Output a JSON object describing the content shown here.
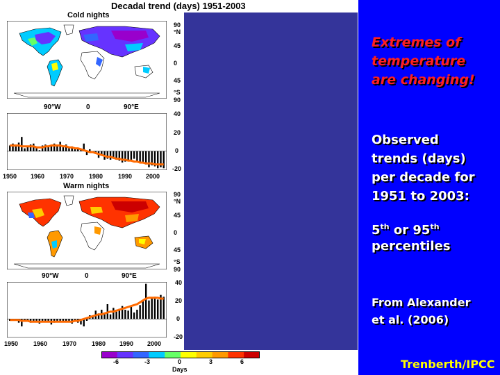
{
  "figure": {
    "title": "Decadal trend (days)  1951-2003",
    "panels": [
      {
        "name": "Cold nights",
        "lat_labels": [
          "90",
          "°N",
          "45",
          "0",
          "45",
          "°S",
          "90"
        ],
        "lon_labels": [
          "90°W",
          "0",
          "90°E"
        ],
        "ts_y_ticks": [
          "40",
          "20",
          "0",
          "-20"
        ],
        "ts_x_ticks": [
          "1950",
          "1960",
          "1970",
          "1980",
          "1990",
          "2000"
        ]
      },
      {
        "name": "Warm nights",
        "lat_labels": [
          "90",
          "°N",
          "45",
          "0",
          "45",
          "°S",
          "90"
        ],
        "lon_labels": [
          "90°W",
          "0",
          "90°E"
        ],
        "ts_y_ticks": [
          "40",
          "20",
          "0",
          "-20"
        ],
        "ts_x_ticks": [
          "1950",
          "1960",
          "1970",
          "1980",
          "1990",
          "2000"
        ]
      }
    ],
    "colorbar": {
      "ticks": [
        "-6",
        "-3",
        "0",
        "3",
        "6"
      ],
      "label": "Days",
      "colors": [
        "#9900cc",
        "#6633ff",
        "#3366ff",
        "#00ccff",
        "#66ff66",
        "#ffff00",
        "#ffcc00",
        "#ff9900",
        "#ff3300",
        "#cc0000"
      ]
    }
  },
  "chart_data": [
    {
      "type": "bar",
      "title": "Cold nights",
      "x": [
        1951,
        1952,
        1953,
        1954,
        1955,
        1956,
        1957,
        1958,
        1959,
        1960,
        1961,
        1962,
        1963,
        1964,
        1965,
        1966,
        1967,
        1968,
        1969,
        1970,
        1971,
        1972,
        1973,
        1974,
        1975,
        1976,
        1977,
        1978,
        1979,
        1980,
        1981,
        1982,
        1983,
        1984,
        1985,
        1986,
        1987,
        1988,
        1989,
        1990,
        1991,
        1992,
        1993,
        1994,
        1995,
        1996,
        1997,
        1998,
        1999,
        2000,
        2001,
        2002,
        2003
      ],
      "values": [
        6,
        8,
        5,
        9,
        15,
        3,
        5,
        7,
        8,
        4,
        1,
        6,
        7,
        5,
        6,
        8,
        7,
        10,
        6,
        7,
        3,
        5,
        3,
        2,
        2,
        8,
        -4,
        2,
        -2,
        -3,
        -7,
        -5,
        -9,
        -8,
        -9,
        -8,
        -9,
        -10,
        -12,
        -11,
        -10,
        -9,
        -8,
        -11,
        -12,
        -13,
        -14,
        -17,
        -15,
        -16,
        -18,
        -17,
        -18
      ],
      "smoothed": [
        6,
        6,
        6,
        6,
        5,
        5,
        5,
        5,
        5,
        4,
        4,
        4,
        5,
        5,
        6,
        6,
        6,
        6,
        5,
        5,
        4,
        4,
        3,
        3,
        2,
        1,
        0,
        -1,
        -1,
        -2,
        -3,
        -4,
        -5,
        -6,
        -6,
        -7,
        -8,
        -8,
        -9,
        -9,
        -10,
        -10,
        -11,
        -11,
        -12,
        -12,
        -13,
        -13,
        -13,
        -14,
        -14,
        -14,
        -14
      ],
      "ylim": [
        -20,
        40
      ],
      "colors": {
        "bars": "#000000",
        "smooth": "#ff6a00"
      }
    },
    {
      "type": "bar",
      "title": "Warm nights",
      "x": [
        1951,
        1952,
        1953,
        1954,
        1955,
        1956,
        1957,
        1958,
        1959,
        1960,
        1961,
        1962,
        1963,
        1964,
        1965,
        1966,
        1967,
        1968,
        1969,
        1970,
        1971,
        1972,
        1973,
        1974,
        1975,
        1976,
        1977,
        1978,
        1979,
        1980,
        1981,
        1982,
        1983,
        1984,
        1985,
        1986,
        1987,
        1988,
        1989,
        1990,
        1991,
        1992,
        1993,
        1994,
        1995,
        1996,
        1997,
        1998,
        1999,
        2000,
        2001,
        2002,
        2003
      ],
      "values": [
        -2,
        -1,
        0,
        -4,
        -8,
        -3,
        -2,
        -4,
        -3,
        -2,
        -5,
        -3,
        -2,
        -3,
        -6,
        -4,
        -3,
        -2,
        -3,
        -3,
        -2,
        -5,
        -2,
        -4,
        -6,
        -8,
        -2,
        4,
        3,
        9,
        6,
        10,
        7,
        16,
        5,
        12,
        8,
        11,
        14,
        10,
        9,
        13,
        7,
        10,
        15,
        20,
        38,
        20,
        22,
        24,
        21,
        26,
        24
      ],
      "smoothed": [
        -1,
        -1,
        -1,
        -1,
        -2,
        -2,
        -2,
        -3,
        -3,
        -3,
        -3,
        -3,
        -3,
        -3,
        -3,
        -3,
        -3,
        -3,
        -3,
        -3,
        -3,
        -3,
        -2,
        -2,
        -1,
        0,
        1,
        2,
        3,
        4,
        5,
        5,
        6,
        7,
        8,
        8,
        9,
        10,
        11,
        12,
        13,
        14,
        15,
        16,
        18,
        20,
        22,
        23,
        23,
        23,
        23,
        22,
        22
      ],
      "ylim": [
        -20,
        40
      ],
      "colors": {
        "bars": "#000000",
        "smooth": "#ff6a00"
      }
    }
  ],
  "slide": {
    "headline": [
      "Extremes of",
      "temperature",
      "are changing!"
    ],
    "body": [
      "Observed",
      "trends (days)",
      "per decade for",
      "1951 to 2003:"
    ],
    "percentiles": {
      "line1_a": "5",
      "line1_sup_a": "th",
      "line1_b": " or 95",
      "line1_sup_b": "th",
      "line2": "percentiles"
    },
    "source": [
      "From Alexander",
      "et al. (2006)"
    ],
    "credit": "Trenberth/IPCC"
  },
  "colors": {
    "background_panel": "#0000ff",
    "mid_box": "#34349a",
    "headline": "#ff2020",
    "credit": "#ffff00"
  }
}
